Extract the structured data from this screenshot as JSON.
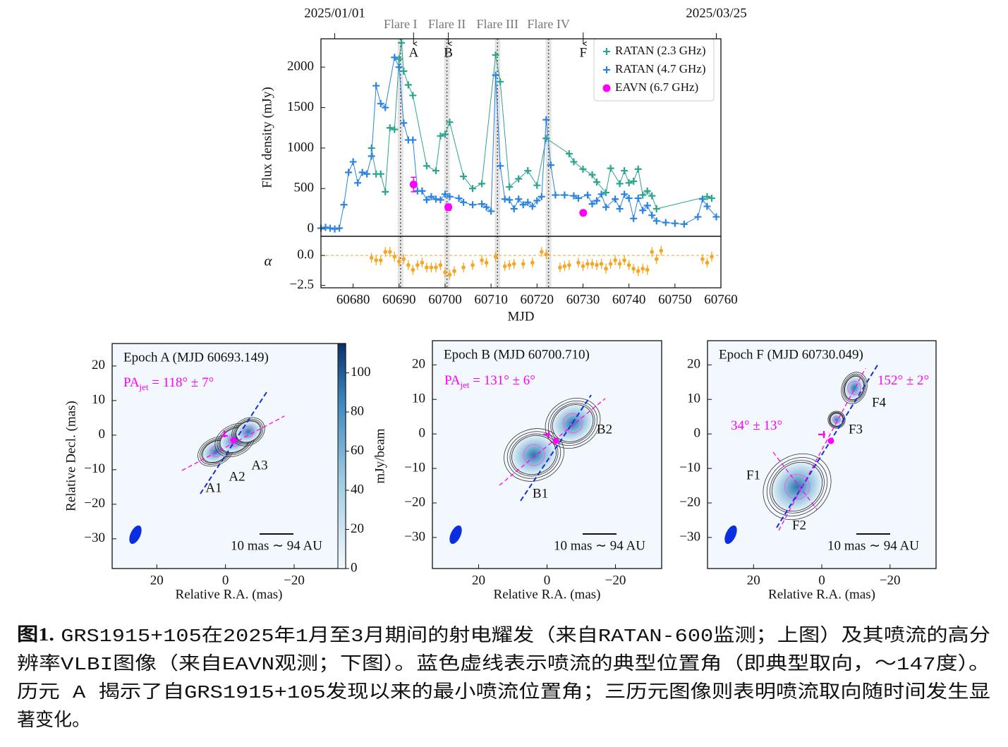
{
  "chart_data": [
    {
      "type": "line",
      "xlim": [
        60673,
        60760
      ],
      "ylim": [
        -90,
        2350
      ],
      "yticks": [
        0,
        500,
        1000,
        1500,
        2000
      ],
      "ylabel": "Flux density (mJy)",
      "top_ticks": [
        {
          "value": 60676,
          "label": "2025/01/01"
        },
        {
          "value": 60759,
          "label": "2025/03/25"
        }
      ],
      "flares": [
        {
          "label": "Flare I",
          "x": 60690.3
        },
        {
          "label": "Flare II",
          "x": 60700.4
        },
        {
          "label": "Flare III",
          "x": 60711.4
        },
        {
          "label": "Flare IV",
          "x": 60722.5
        }
      ],
      "annotations": [
        {
          "label": "A",
          "x": 60693.149
        },
        {
          "label": "B",
          "x": 60700.71
        },
        {
          "label": "F",
          "x": 60730.049
        }
      ],
      "legend": "upper right",
      "series": [
        {
          "name": "RATAN (2.3 GHz)",
          "color": "#2ca58d",
          "x": [
            60684,
            60685,
            60686,
            60687,
            60688,
            60689,
            60690,
            60690.5,
            60691,
            60692,
            60693,
            60696,
            60698,
            60699,
            60700,
            60701,
            60704,
            60706,
            60708,
            60711,
            60712,
            60714,
            60716,
            60718,
            60720,
            60722,
            60727,
            60728,
            60730,
            60732,
            60733,
            60735,
            60736,
            60738,
            60739,
            60740,
            60741,
            60742,
            60743,
            60744,
            60745,
            60746,
            60757,
            60758
          ],
          "values": [
            1000,
            680,
            680,
            460,
            1250,
            1230,
            2100,
            2300,
            1950,
            1780,
            1650,
            780,
            720,
            1150,
            1170,
            1320,
            650,
            500,
            560,
            2150,
            1820,
            520,
            620,
            720,
            540,
            1120,
            930,
            830,
            740,
            670,
            580,
            450,
            750,
            560,
            720,
            570,
            590,
            740,
            420,
            470,
            410,
            250,
            400,
            380
          ]
        },
        {
          "name": "RATAN (4.7 GHz)",
          "color": "#2b83e0",
          "x": [
            60673,
            60674,
            60675,
            60676,
            60677,
            60678,
            60679,
            60680,
            60681,
            60682,
            60683,
            60684,
            60685,
            60686,
            60687,
            60689,
            60690,
            60691,
            60692,
            60693,
            60694,
            60695,
            60696,
            60697,
            60698,
            60699,
            60700,
            60701,
            60703,
            60704,
            60706,
            60708,
            60709,
            60710,
            60711,
            60712,
            60713,
            60714,
            60715,
            60716,
            60717,
            60718,
            60719,
            60720,
            60721,
            60722,
            60723,
            60724,
            60726,
            60728,
            60729,
            60731,
            60732,
            60733,
            60734,
            60735,
            60737,
            60738,
            60739,
            60740,
            60741,
            60742,
            60743,
            60744,
            60745,
            60746,
            60748,
            60750,
            60752,
            60755,
            60756,
            60757,
            60759
          ],
          "values": [
            10,
            20,
            10,
            0,
            10,
            300,
            700,
            830,
            570,
            700,
            680,
            900,
            1770,
            1550,
            1500,
            2120,
            2000,
            1310,
            1100,
            1100,
            470,
            470,
            360,
            400,
            370,
            360,
            430,
            400,
            380,
            330,
            300,
            310,
            270,
            220,
            1900,
            780,
            370,
            360,
            250,
            370,
            300,
            330,
            280,
            350,
            400,
            1350,
            790,
            420,
            420,
            410,
            380,
            420,
            310,
            350,
            430,
            270,
            370,
            250,
            430,
            380,
            130,
            380,
            230,
            290,
            170,
            100,
            80,
            70,
            60,
            150,
            370,
            280,
            150
          ]
        },
        {
          "name": "EAVN (6.7 GHz)",
          "color": "#ff00ff",
          "x": [
            60693.149,
            60700.71,
            60730.049
          ],
          "values": [
            550,
            270,
            200
          ],
          "errors": [
            90,
            40,
            30
          ]
        }
      ]
    },
    {
      "type": "scatter",
      "xlim": [
        60673,
        60760
      ],
      "ylim": [
        -2.7,
        1.6
      ],
      "xticks": [
        60680,
        60690,
        60700,
        60710,
        60720,
        60730,
        60740,
        60750,
        60760
      ],
      "yticks": [
        {
          "value": -2.5,
          "label": "−2.5"
        },
        {
          "value": 0,
          "label": "0.0"
        }
      ],
      "xlabel": "MJD",
      "ylabel": "α",
      "hline": 0,
      "color": "#f5a623",
      "x": [
        60684,
        60685,
        60686,
        60687,
        60688,
        60689,
        60690,
        60691,
        60692,
        60693,
        60694,
        60695,
        60696,
        60697,
        60698,
        60699,
        60700,
        60701,
        60702,
        60704,
        60706,
        60708,
        60709,
        60711,
        60713,
        60714,
        60715,
        60717,
        60719,
        60721,
        60722,
        60725,
        60726,
        60727,
        60729,
        60730,
        60731,
        60732,
        60733,
        60734,
        60735,
        60736,
        60737,
        60738,
        60739,
        60740,
        60741,
        60742,
        60743,
        60744,
        60745,
        60746,
        60747,
        60756,
        60757,
        60758
      ],
      "values": [
        -0.2,
        -0.4,
        -0.4,
        0.3,
        0.3,
        -0.1,
        -0.5,
        -0.3,
        -0.8,
        -1.2,
        -0.8,
        -0.6,
        -1.0,
        -1.0,
        -1.0,
        -0.8,
        -1.4,
        -1.6,
        -1.3,
        -1.0,
        -0.8,
        -0.4,
        -0.6,
        -0.1,
        -0.9,
        -0.8,
        -0.7,
        -0.7,
        -0.6,
        0.3,
        0.1,
        -1.0,
        -0.9,
        -0.8,
        -0.6,
        -0.9,
        -0.7,
        -0.7,
        -0.8,
        -0.7,
        -1.1,
        -0.7,
        -0.4,
        -0.7,
        -0.4,
        -0.8,
        -1.1,
        -1.3,
        -1.1,
        -1.2,
        0.3,
        -0.3,
        0.4,
        -0.3,
        -0.6,
        -0.1
      ]
    },
    {
      "type": "image",
      "title": "Epoch A (MJD 60693.149)",
      "xlim": [
        33,
        -35
      ],
      "ylim": [
        -38.6,
        26.5
      ],
      "xticks": [
        20,
        0,
        {
          "value": -20,
          "label": "−20"
        }
      ],
      "yticks": [
        20,
        10,
        0,
        {
          "value": -10,
          "label": "−10"
        },
        {
          "value": -20,
          "label": "−20"
        },
        {
          "value": -30,
          "label": "−30"
        }
      ],
      "xlabel": "Relative R.A. (mas)",
      "ylabel": "Relative Decl. (mas)",
      "pa_labels": [
        {
          "main": "PA",
          "sub": "jet",
          "rest": " = 118° ± 7°"
        }
      ],
      "components": [
        "A1",
        "A2",
        "A3"
      ],
      "scale_bar": "10 mas ∼ 94 AU",
      "colorbar": {
        "label": "mJy/beam",
        "lim": [
          0,
          115
        ],
        "ticks": [
          0,
          20,
          40,
          60,
          80,
          100
        ]
      }
    },
    {
      "type": "image",
      "title": "Epoch B (MJD 60700.710)",
      "xlim": [
        33.5,
        -33.5
      ],
      "ylim": [
        -39,
        27
      ],
      "xticks": [
        20,
        0,
        {
          "value": -20,
          "label": "−20"
        }
      ],
      "yticks": [
        20,
        10,
        0,
        {
          "value": -10,
          "label": "−10"
        },
        {
          "value": -20,
          "label": "−20"
        },
        {
          "value": -30,
          "label": "−30"
        }
      ],
      "xlabel": "Relative R.A. (mas)",
      "pa_labels": [
        {
          "main": "PA",
          "sub": "jet",
          "rest": " = 131° ± 6°"
        }
      ],
      "components": [
        "B1",
        "B2"
      ],
      "scale_bar": "10 mas ∼ 94 AU"
    },
    {
      "type": "image",
      "title": "Epoch F (MJD 60730.049)",
      "xlim": [
        33.5,
        -33.5
      ],
      "ylim": [
        -39,
        27
      ],
      "xticks": [
        20,
        0,
        {
          "value": -20,
          "label": "−20"
        }
      ],
      "yticks": [
        20,
        10,
        0,
        {
          "value": -10,
          "label": "−10"
        },
        {
          "value": -20,
          "label": "−20"
        },
        {
          "value": -30,
          "label": "−30"
        }
      ],
      "xlabel": "Relative R.A. (mas)",
      "pa_labels": [
        {
          "main": "34° ± 13°"
        },
        {
          "main": "152° ± 2°"
        }
      ],
      "components": [
        "F1",
        "F2",
        "F3",
        "F4"
      ],
      "scale_bar": "10 mas ∼ 94 AU"
    }
  ],
  "caption": {
    "label": "图1.",
    "lines": [
      "GRS1915+105在2025年1月至3月期间的射电耀发（来自RATAN-600监测；上图）及其喷流的高分",
      "辨率VLBI图像（来自EAVN观测；下图）。蓝色虚线表示喷流的典型位置角（即典型取向，～147度）。",
      "历元 A 揭示了自GRS1915+105发现以来的最小喷流位置角；三历元图像则表明喷流取向随时间发生显",
      "著变化。"
    ]
  }
}
